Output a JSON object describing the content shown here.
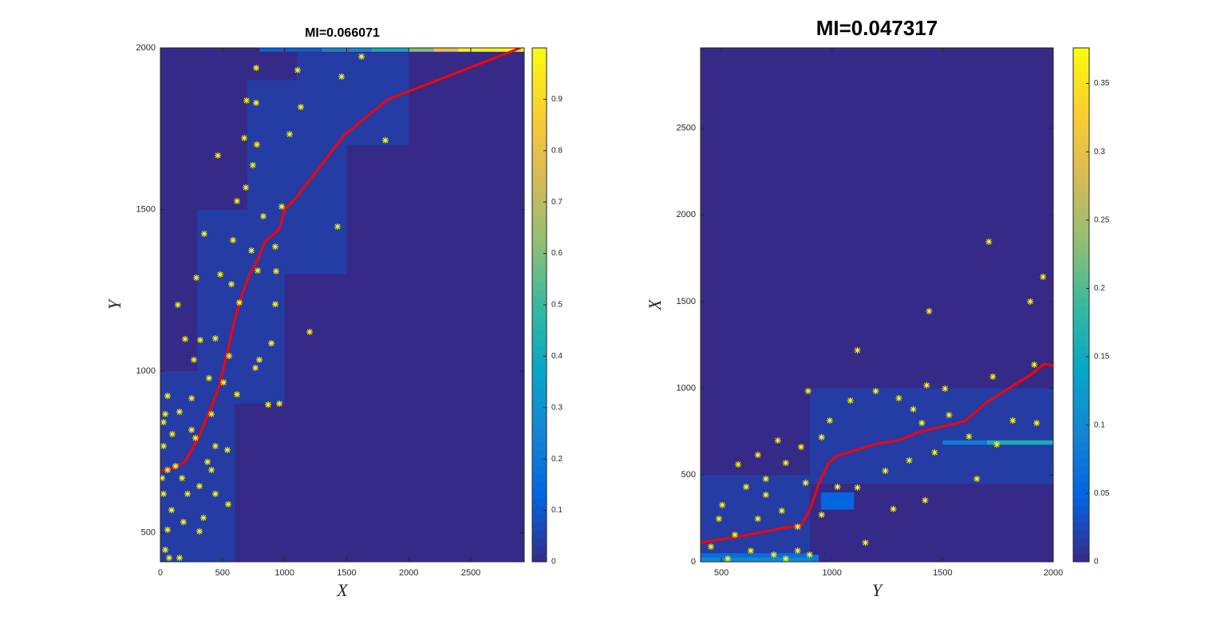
{
  "chart_data": [
    {
      "type": "heatmap",
      "title": "MI=0.066071",
      "xlabel": "X",
      "ylabel": "Y",
      "xlim": [
        0,
        2930
      ],
      "ylim": [
        410,
        2000
      ],
      "xticks": [
        0,
        500,
        1000,
        1500,
        2000,
        2500
      ],
      "yticks": [
        500,
        1000,
        1500,
        2000
      ],
      "clim": [
        0,
        1
      ],
      "cticks": [
        0,
        0.1,
        0.2,
        0.3,
        0.4,
        0.5,
        0.6,
        0.7,
        0.8,
        0.9
      ],
      "colormap": [
        "#352a87",
        "#0363e1",
        "#1485d4",
        "#06a7c6",
        "#38b99e",
        "#92bf73",
        "#d9ba56",
        "#fcce2e",
        "#f9fb0e"
      ],
      "cells": [
        {
          "x": [
            0,
            600
          ],
          "y": [
            410,
            1000
          ],
          "value": 0.04
        },
        {
          "x": [
            300,
            1000
          ],
          "y": [
            900,
            1500
          ],
          "value": 0.04
        },
        {
          "x": [
            700,
            1500
          ],
          "y": [
            1300,
            1900
          ],
          "value": 0.04
        },
        {
          "x": [
            1100,
            2000
          ],
          "y": [
            1700,
            1985
          ],
          "value": 0.04
        },
        {
          "x": [
            800,
            1300
          ],
          "y": [
            1988,
            2000
          ],
          "value": 0.12
        },
        {
          "x": [
            1300,
            1700
          ],
          "y": [
            1988,
            2000
          ],
          "value": 0.25
        },
        {
          "x": [
            1700,
            2000
          ],
          "y": [
            1988,
            2000
          ],
          "value": 0.4
        },
        {
          "x": [
            2000,
            2200
          ],
          "y": [
            1988,
            2000
          ],
          "value": 0.6
        },
        {
          "x": [
            2200,
            2400
          ],
          "y": [
            1988,
            2000
          ],
          "value": 0.8
        },
        {
          "x": [
            2400,
            2930
          ],
          "y": [
            1988,
            2000
          ],
          "value": 0.97
        }
      ],
      "points": {
        "color": "#ffff00",
        "x": [
          772,
          694,
          771,
          1105,
          1131,
          1459,
          1620,
          1812,
          675,
          777,
          463,
          1041,
          745,
          688,
          617,
          829,
          977,
          1427,
          353,
          585,
          733,
          925,
          784,
          932,
          482,
          289,
          572,
          636,
          141,
          925,
          1202,
          893,
          443,
          321,
          199,
          553,
          797,
          765,
          270,
          392,
          958,
          868,
          508,
          617,
          58,
          154,
          251,
          411,
          26,
          96,
          283,
          540,
          379,
          58,
          174,
          315,
          443,
          546,
          26,
          90,
          186,
          315,
          58,
          39,
          154,
          26,
          13,
          39,
          122,
          219,
          347,
          71,
          251,
          443,
          411
        ],
        "y": [
          1938,
          1837,
          1830,
          1931,
          1817,
          1911,
          1973,
          1714,
          1721,
          1701,
          1667,
          1733,
          1637,
          1568,
          1526,
          1479,
          1509,
          1447,
          1425,
          1405,
          1373,
          1385,
          1311,
          1309,
          1299,
          1289,
          1269,
          1212,
          1205,
          1207,
          1121,
          1086,
          1101,
          1096,
          1099,
          1047,
          1035,
          1010,
          1035,
          978,
          899,
          896,
          965,
          928,
          923,
          874,
          916,
          867,
          842,
          805,
          793,
          756,
          719,
          694,
          669,
          644,
          620,
          588,
          620,
          570,
          533,
          504,
          509,
          447,
          422,
          768,
          669,
          867,
          706,
          620,
          546,
          422,
          818,
          768,
          694
        ]
      },
      "line": {
        "color": "#ff0000",
        "x": [
          0,
          100,
          200,
          300,
          400,
          480,
          540,
          600,
          650,
          720,
          780,
          840,
          900,
          960,
          1000,
          1100,
          1480,
          1830,
          2900
        ],
        "y": [
          690,
          700,
          720,
          790,
          880,
          960,
          1060,
          1160,
          1230,
          1300,
          1340,
          1400,
          1420,
          1440,
          1500,
          1540,
          1730,
          1840,
          2000
        ]
      }
    },
    {
      "type": "heatmap",
      "title": "MI=0.047317",
      "xlabel": "Y",
      "ylabel": "X",
      "xlim": [
        406,
        2000
      ],
      "ylim": [
        0,
        2962
      ],
      "xticks": [
        500,
        1000,
        1500,
        2000
      ],
      "yticks": [
        0,
        500,
        1000,
        1500,
        2000,
        2500
      ],
      "clim": [
        0,
        0.376
      ],
      "cticks": [
        0,
        0.05,
        0.1,
        0.15,
        0.2,
        0.25,
        0.3,
        0.35
      ],
      "colormap": [
        "#352a87",
        "#0363e1",
        "#1485d4",
        "#06a7c6",
        "#38b99e",
        "#92bf73",
        "#d9ba56",
        "#fcce2e",
        "#f9fb0e"
      ],
      "cells": [
        {
          "x": [
            900,
            2000
          ],
          "y": [
            450,
            1000
          ],
          "value": 0.015
        },
        {
          "x": [
            406,
            900
          ],
          "y": [
            0,
            500
          ],
          "value": 0.015
        },
        {
          "x": [
            950,
            1100
          ],
          "y": [
            300,
            400
          ],
          "value": 0.05
        },
        {
          "x": [
            406,
            900
          ],
          "y": [
            25,
            50
          ],
          "value": 0.06
        },
        {
          "x": [
            406,
            900
          ],
          "y": [
            0,
            25
          ],
          "value": 0.1
        },
        {
          "x": [
            900,
            940
          ],
          "y": [
            0,
            40
          ],
          "value": 0.08
        },
        {
          "x": [
            1500,
            1700
          ],
          "y": [
            675,
            700
          ],
          "value": 0.08
        },
        {
          "x": [
            1700,
            2000
          ],
          "y": [
            675,
            700
          ],
          "value": 0.16
        }
      ],
      "points": {
        "color": "#ffff00",
        "x": [
          1709,
          1439,
          1954,
          1896,
          1115,
          1727,
          1914,
          1428,
          1511,
          892,
          1198,
          1083,
          1302,
          990,
          1367,
          1406,
          1529,
          1817,
          1925,
          1619,
          1745,
          1464,
          1349,
          1241,
          1421,
          1655,
          1277,
          1115,
          953,
          860,
          755,
          665,
          576,
          504,
          612,
          701,
          791,
          881,
          1025,
          1151,
          489,
          561,
          665,
          773,
          845,
          453,
          633,
          737,
          845,
          899,
          701,
          953,
          529,
          791
        ],
        "y": [
          1845,
          1444,
          1642,
          1500,
          1219,
          1067,
          1136,
          1017,
          998,
          984,
          984,
          929,
          943,
          814,
          879,
          800,
          846,
          814,
          800,
          722,
          676,
          630,
          584,
          524,
          354,
          478,
          304,
          428,
          718,
          662,
          699,
          616,
          561,
          327,
          432,
          478,
          570,
          455,
          432,
          110,
          248,
          156,
          248,
          294,
          202,
          87,
          64,
          41,
          64,
          41,
          386,
          271,
          18,
          18
        ]
      },
      "line": {
        "color": "#ff0000",
        "x": [
          406,
          500,
          600,
          700,
          800,
          860,
          900,
          940,
          980,
          1020,
          1100,
          1200,
          1300,
          1400,
          1500,
          1600,
          1700,
          1800,
          1900,
          1960,
          2000
        ],
        "y": [
          110,
          130,
          150,
          175,
          200,
          210,
          300,
          450,
          560,
          610,
          640,
          680,
          700,
          750,
          780,
          810,
          920,
          1000,
          1080,
          1140,
          1130
        ]
      }
    }
  ]
}
